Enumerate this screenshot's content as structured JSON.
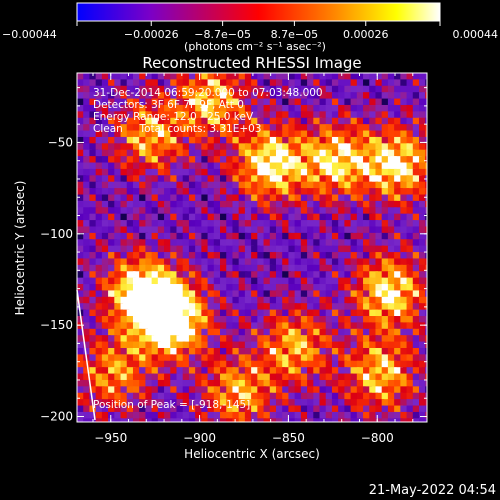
{
  "chart_data": {
    "type": "heatmap",
    "title": "Reconstructed RHESSI Image",
    "xlabel": "Heliocentric X (arcsec)",
    "ylabel": "Heliocentric Y (arcsec)",
    "xlim": [
      -969,
      -772
    ],
    "ylim": [
      -203,
      -12
    ],
    "x_ticks": [
      -950,
      -900,
      -850,
      -800
    ],
    "y_ticks": [
      -50,
      -100,
      -150,
      -200
    ],
    "x_tick_labels": [
      "−950",
      "−900",
      "−850",
      "−800"
    ],
    "y_tick_labels": [
      "−50",
      "−100",
      "−150",
      "−200"
    ],
    "colorbar": {
      "min": -0.00044,
      "max": 0.00044,
      "ticks": [
        -0.00044,
        -0.00026,
        -8.7e-05,
        8.7e-05,
        0.00026,
        0.00044
      ],
      "tick_labels": [
        "−0.00044",
        "−0.00026",
        "−8.7e−05",
        "8.7e−05",
        "0.00026",
        "0.00044"
      ],
      "unit_label": "(photons cm⁻² s⁻¹ asec⁻²)",
      "colors": [
        "#0000ff",
        "#7a00c8",
        "#ff0000",
        "#ff8000",
        "#ffff00",
        "#ffffff"
      ]
    },
    "annotations": [
      "31-Dec-2014 06:59:20.000 to 07:03:48.000",
      "Detectors: 3F 6F 7F 9F, Att 0",
      "Energy Range: 12.0 - 25.0 keV",
      "Clean     Total counts: 3.31E+03"
    ],
    "peak_label": "Position of Peak = [-918,-145]",
    "peak": [
      -918,
      -145
    ],
    "sources": [
      {
        "x": -918,
        "y": -145,
        "level": 1.0
      },
      {
        "x": -935,
        "y": -130,
        "level": 0.75
      },
      {
        "x": -862,
        "y": -60,
        "level": 0.75
      },
      {
        "x": -825,
        "y": -58,
        "level": 0.65
      },
      {
        "x": -790,
        "y": -60,
        "level": 0.7
      },
      {
        "x": -895,
        "y": -25,
        "level": 0.6
      },
      {
        "x": -930,
        "y": -45,
        "level": 0.55
      },
      {
        "x": -795,
        "y": -130,
        "level": 0.7
      },
      {
        "x": -800,
        "y": -175,
        "level": 0.6
      },
      {
        "x": -848,
        "y": -160,
        "level": 0.55
      },
      {
        "x": -880,
        "y": -185,
        "level": 0.55
      },
      {
        "x": -950,
        "y": -175,
        "level": 0.5
      }
    ]
  },
  "footer": {
    "timestamp": "21-May-2022 04:54"
  }
}
